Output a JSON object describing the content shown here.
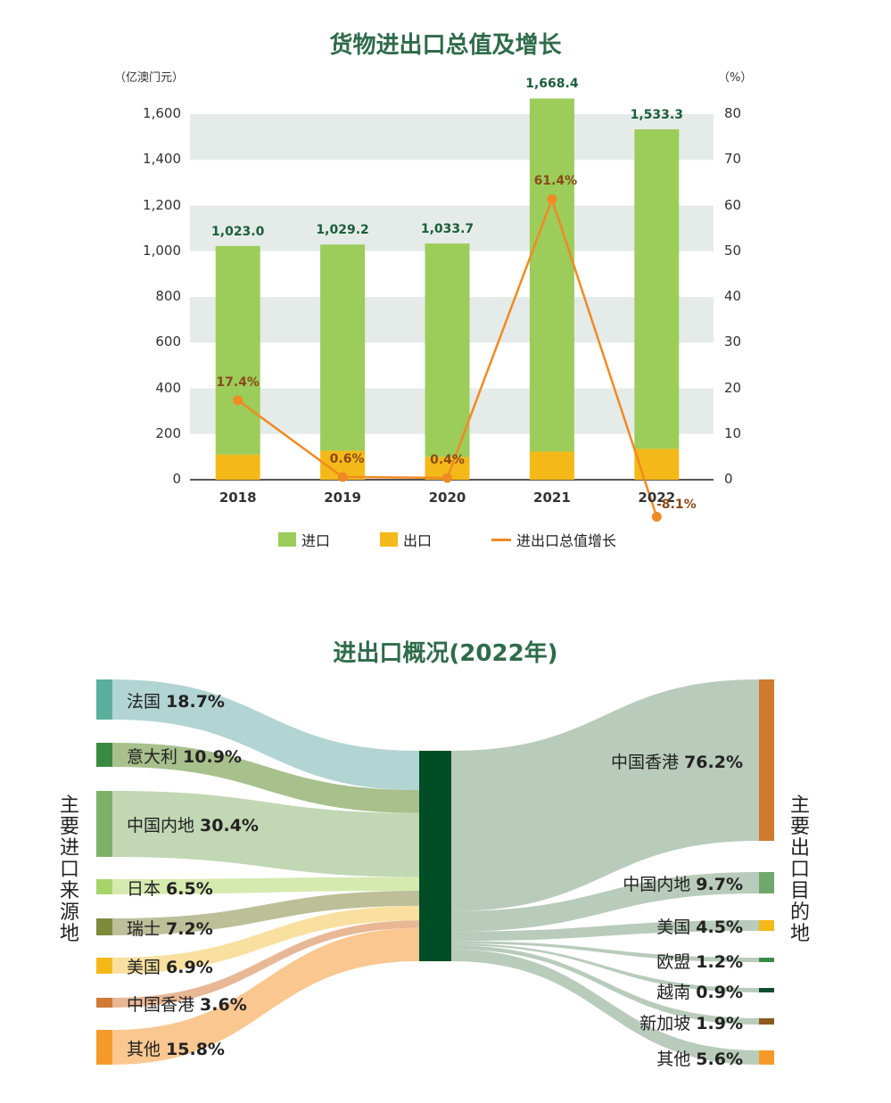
{
  "top_title": "货物进出口总值及增长",
  "left_unit": "（亿澳门元）",
  "right_unit": "（%）",
  "legend": {
    "imports": "进口",
    "exports": "出口",
    "growth": "进出口总值增长"
  },
  "colors": {
    "imports": "#9ccc5a",
    "exports": "#f4b918",
    "growth": "#f08a24",
    "band": "#e5ebe8",
    "title": "#2f6b4a",
    "hub": "#004d26"
  },
  "chart_data": [
    {
      "type": "bar",
      "stacked": true,
      "title": "货物进出口总值及增长",
      "categories": [
        "2018",
        "2019",
        "2020",
        "2021",
        "2022"
      ],
      "series": [
        {
          "name": "进口",
          "values": [
            913.0,
            902.2,
            933.7,
            1545.4,
            1398.3
          ]
        },
        {
          "name": "出口",
          "values": [
            110.0,
            127.0,
            100.0,
            123.0,
            135.0
          ]
        }
      ],
      "totals": [
        "1,023.0",
        "1,029.2",
        "1,033.7",
        "1,668.4",
        "1,533.3"
      ],
      "growth": {
        "name": "进出口总值增长",
        "values": [
          17.4,
          0.6,
          0.4,
          61.4,
          -8.1
        ],
        "labels": [
          "17.4%",
          "0.6%",
          "0.4%",
          "61.4%",
          "-8.1%"
        ]
      },
      "ylim": [
        0,
        1600
      ],
      "yticks": [
        "0",
        "200",
        "400",
        "600",
        "800",
        "1,000",
        "1,200",
        "1,400",
        "1,600"
      ],
      "y2lim": [
        0,
        80
      ],
      "y2ticks": [
        "0",
        "10",
        "20",
        "30",
        "40",
        "50",
        "60",
        "70",
        "80"
      ],
      "ylabel": "（亿澳门元）",
      "y2label": "（%）",
      "legend_position": "bottom"
    },
    {
      "type": "sankey",
      "title": "进出口概况(2022年)",
      "sources": [
        {
          "name": "法国",
          "value": 18.7,
          "label": "18.7%",
          "color": "#5aaf9c"
        },
        {
          "name": "意大利",
          "value": 10.9,
          "label": "10.9%",
          "color": "#3a8a44"
        },
        {
          "name": "中国内地",
          "value": 30.4,
          "label": "30.4%",
          "color": "#7fb069"
        },
        {
          "name": "日本",
          "value": 6.5,
          "label": "6.5%",
          "color": "#a6d36a"
        },
        {
          "name": "瑞士",
          "value": 7.2,
          "label": "7.2%",
          "color": "#7d8a3c"
        },
        {
          "name": "美国",
          "value": 6.9,
          "label": "6.9%",
          "color": "#f4b918"
        },
        {
          "name": "中国香港",
          "value": 3.6,
          "label": "3.6%",
          "color": "#d07a36"
        },
        {
          "name": "其他",
          "value": 15.8,
          "label": "15.8%",
          "color": "#f59a28"
        }
      ],
      "targets": [
        {
          "name": "中国香港",
          "value": 76.2,
          "label": "76.2%",
          "color": "#d07a2e"
        },
        {
          "name": "中国内地",
          "value": 9.7,
          "label": "9.7%",
          "color": "#6ea86a"
        },
        {
          "name": "美国",
          "value": 4.5,
          "label": "4.5%",
          "color": "#f4b918"
        },
        {
          "name": "欧盟",
          "value": 1.2,
          "label": "1.2%",
          "color": "#3a8a44"
        },
        {
          "name": "越南",
          "value": 0.9,
          "label": "0.9%",
          "color": "#0b4d2e"
        },
        {
          "name": "新加坡",
          "value": 1.9,
          "label": "1.9%",
          "color": "#8a5a1e"
        },
        {
          "name": "其他",
          "value": 5.6,
          "label": "5.6%",
          "color": "#f59a28"
        }
      ],
      "left_axis_label": "主要进口来源地",
      "right_axis_label": "主要出口目的地"
    }
  ],
  "bottom_title": "进出口概况(2022年)"
}
